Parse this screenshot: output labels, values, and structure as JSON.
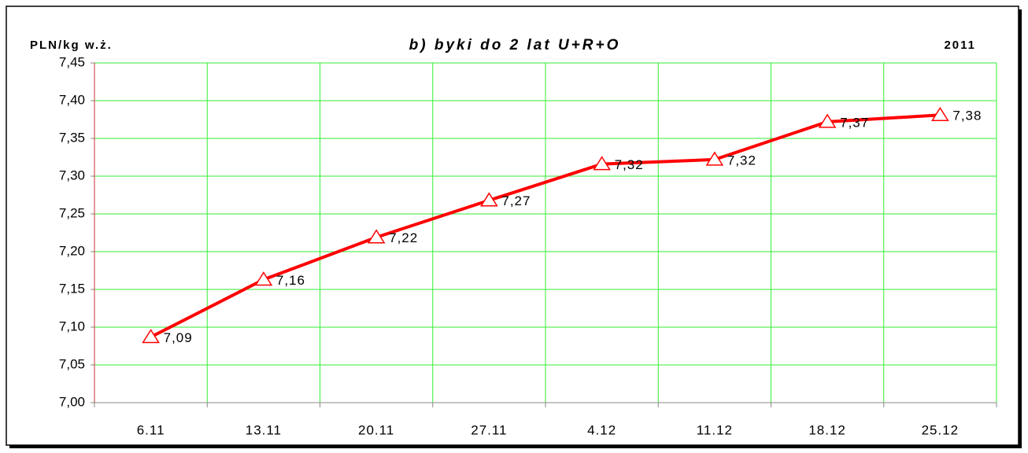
{
  "chart_data": {
    "type": "line",
    "title": "b) byki do 2 lat U+R+O",
    "y_label": "PLN/kg w.ż.",
    "annotation": "2011",
    "categories": [
      "6.11",
      "13.11",
      "20.11",
      "27.11",
      "4.12",
      "11.12",
      "18.12",
      "25.12"
    ],
    "series": [
      {
        "name": null,
        "color": "#ff0000",
        "values": [
          7.087,
          7.163,
          7.219,
          7.268,
          7.316,
          7.322,
          7.372,
          7.381
        ],
        "value_labels": [
          "7,09",
          "7,16",
          "7,22",
          "7,27",
          "7,32",
          "7,32",
          "7,37",
          "7,38"
        ]
      }
    ],
    "ylim": [
      7.0,
      7.45
    ],
    "yticks": [
      {
        "value": 7.0,
        "label": "7,00"
      },
      {
        "value": 7.05,
        "label": "7,05"
      },
      {
        "value": 7.1,
        "label": "7,10"
      },
      {
        "value": 7.15,
        "label": "7,15"
      },
      {
        "value": 7.2,
        "label": "7,20"
      },
      {
        "value": 7.25,
        "label": "7,25"
      },
      {
        "value": 7.3,
        "label": "7,30"
      },
      {
        "value": 7.35,
        "label": "7,35"
      },
      {
        "value": 7.4,
        "label": "7,40"
      },
      {
        "value": 7.45,
        "label": "7,45"
      }
    ],
    "grid": true,
    "grid_color": "#33ee33"
  }
}
